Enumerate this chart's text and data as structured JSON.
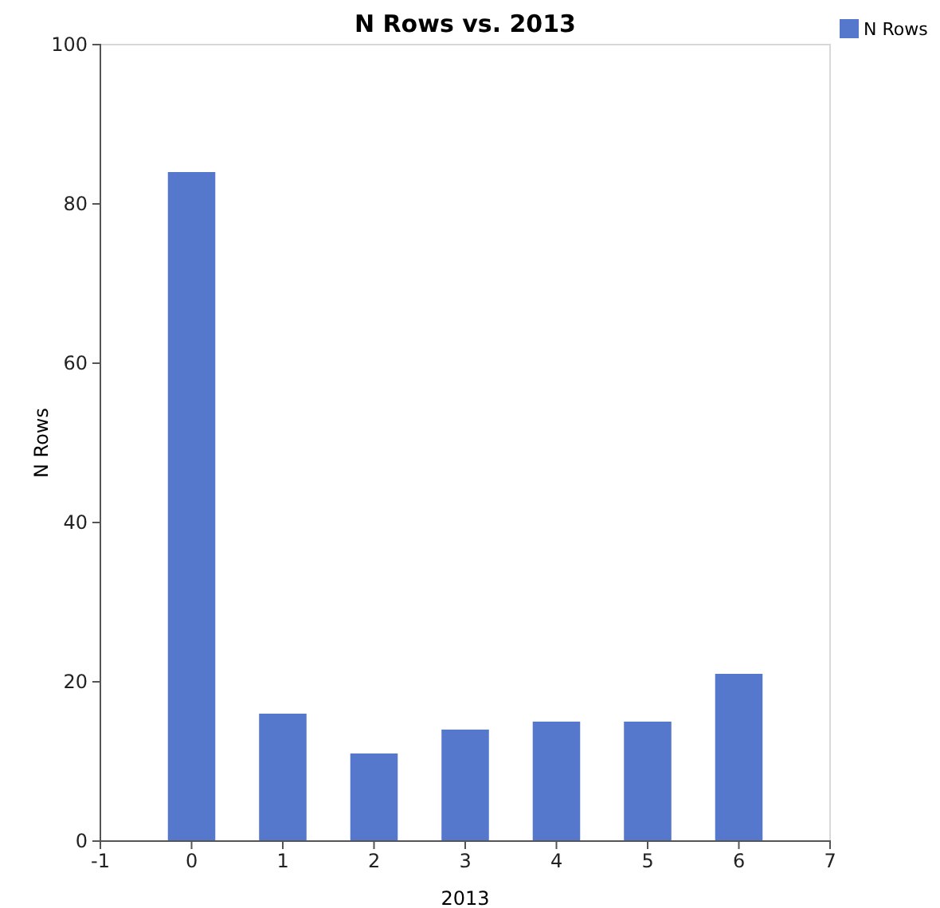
{
  "chart_data": {
    "type": "bar",
    "title": "N Rows vs. 2013",
    "xlabel": "2013",
    "ylabel": "N Rows",
    "x": [
      0,
      1,
      2,
      3,
      4,
      5,
      6
    ],
    "series": [
      {
        "name": "N Rows",
        "color": "#5577cc",
        "values": [
          84,
          16,
          11,
          14,
          15,
          15,
          21
        ]
      }
    ],
    "xlim": [
      -1,
      7
    ],
    "xticks": [
      -1,
      0,
      1,
      2,
      3,
      4,
      5,
      6,
      7
    ],
    "ylim": [
      0,
      100
    ],
    "yticks": [
      0,
      20,
      40,
      60,
      80,
      100
    ],
    "legend": "top right"
  }
}
